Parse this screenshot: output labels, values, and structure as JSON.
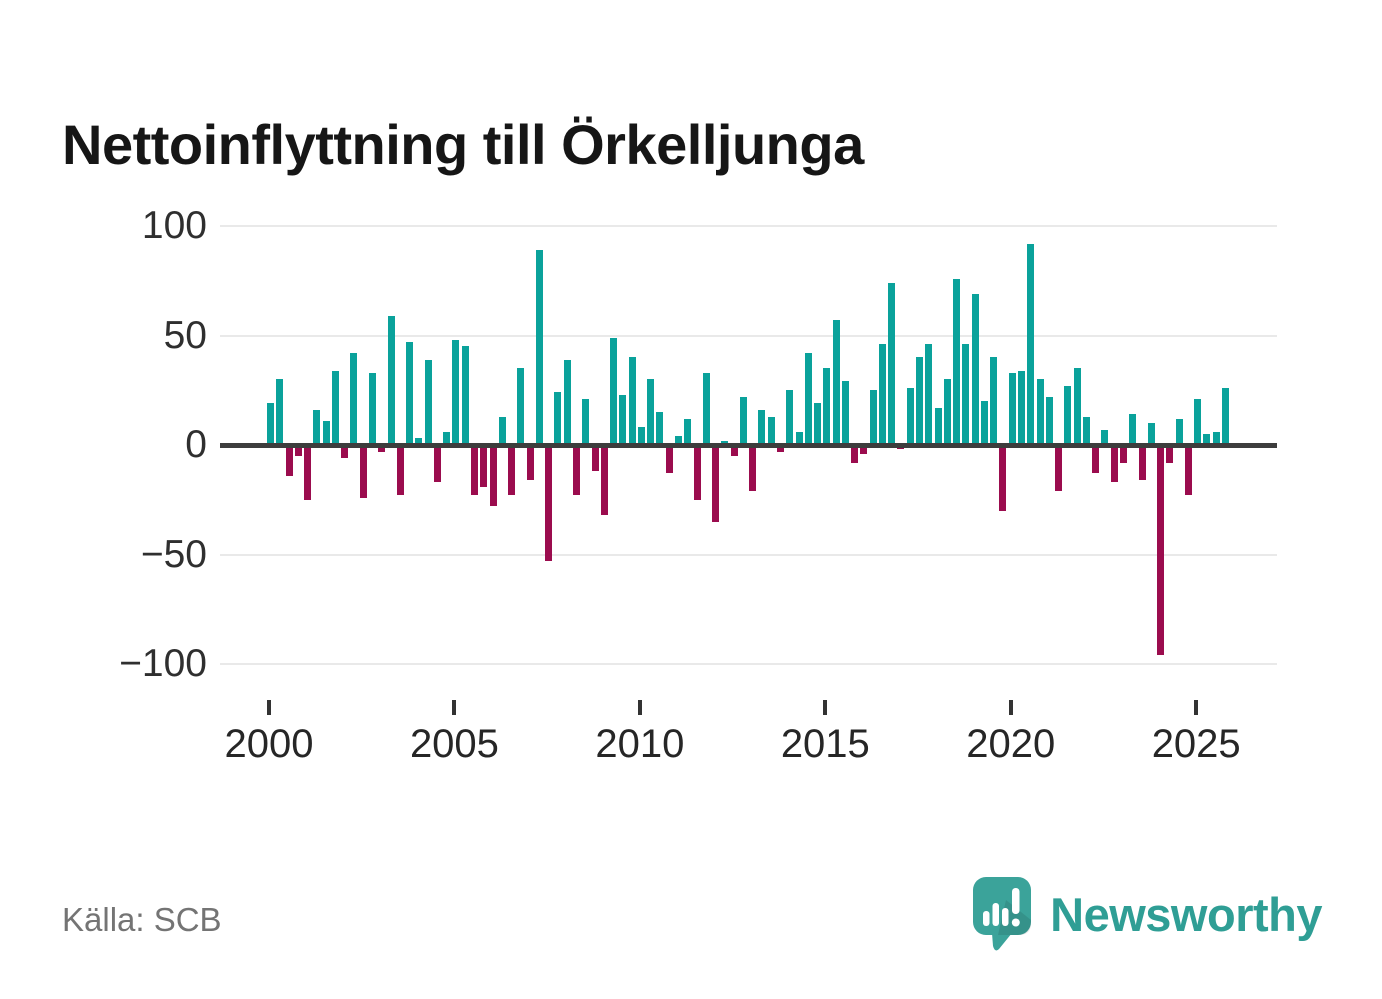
{
  "title": "Nettoinflyttning till Örkelljunga",
  "source": "Källa: SCB",
  "branding": {
    "name": "Newsworthy"
  },
  "colors": {
    "positive": "#0aa29b",
    "negative": "#9b0c4e",
    "zero_axis": "#3d3d3d",
    "grid": "#e9e9e9",
    "brand": "#3ba39a",
    "brand_text": "#2f9e95"
  },
  "y_axis": {
    "tick_labels": [
      "100",
      "50",
      "0",
      "−50",
      "−100"
    ],
    "tick_values": [
      100,
      50,
      0,
      -50,
      -100
    ]
  },
  "x_axis": {
    "tick_labels": [
      "2000",
      "2005",
      "2010",
      "2015",
      "2020",
      "2025"
    ],
    "tick_years": [
      2000,
      2005,
      2010,
      2015,
      2020,
      2025
    ]
  },
  "chart_data": {
    "type": "bar",
    "title": "Nettoinflyttning till Örkelljunga",
    "xlabel": "",
    "ylabel": "",
    "ylim": [
      -100,
      100
    ],
    "grid": "horizontal, every 50",
    "legend": "none",
    "positive_color": "#0aa29b",
    "negative_color": "#9b0c4e",
    "x": [
      "2000-Q1",
      "2000-Q2",
      "2000-Q3",
      "2000-Q4",
      "2001-Q1",
      "2001-Q2",
      "2001-Q3",
      "2001-Q4",
      "2002-Q1",
      "2002-Q2",
      "2002-Q3",
      "2002-Q4",
      "2003-Q1",
      "2003-Q2",
      "2003-Q3",
      "2003-Q4",
      "2004-Q1",
      "2004-Q2",
      "2004-Q3",
      "2004-Q4",
      "2005-Q1",
      "2005-Q2",
      "2005-Q3",
      "2005-Q4",
      "2006-Q1",
      "2006-Q2",
      "2006-Q3",
      "2006-Q4",
      "2007-Q1",
      "2007-Q2",
      "2007-Q3",
      "2007-Q4",
      "2008-Q1",
      "2008-Q2",
      "2008-Q3",
      "2008-Q4",
      "2009-Q1",
      "2009-Q2",
      "2009-Q3",
      "2009-Q4",
      "2010-Q1",
      "2010-Q2",
      "2010-Q3",
      "2010-Q4",
      "2011-Q1",
      "2011-Q2",
      "2011-Q3",
      "2011-Q4",
      "2012-Q1",
      "2012-Q2",
      "2012-Q3",
      "2012-Q4",
      "2013-Q1",
      "2013-Q2",
      "2013-Q3",
      "2013-Q4",
      "2014-Q1",
      "2014-Q2",
      "2014-Q3",
      "2014-Q4",
      "2015-Q1",
      "2015-Q2",
      "2015-Q3",
      "2015-Q4",
      "2016-Q1",
      "2016-Q2",
      "2016-Q3",
      "2016-Q4",
      "2017-Q1",
      "2017-Q2",
      "2017-Q3",
      "2017-Q4",
      "2018-Q1",
      "2018-Q2",
      "2018-Q3",
      "2018-Q4",
      "2019-Q1",
      "2019-Q2",
      "2019-Q3",
      "2019-Q4",
      "2020-Q1",
      "2020-Q2",
      "2020-Q3",
      "2020-Q4",
      "2021-Q1",
      "2021-Q2",
      "2021-Q3",
      "2021-Q4",
      "2022-Q1",
      "2022-Q2",
      "2022-Q3",
      "2022-Q4",
      "2023-Q1",
      "2023-Q2",
      "2023-Q3",
      "2023-Q4",
      "2024-Q1",
      "2024-Q2",
      "2024-Q3",
      "2024-Q4",
      "2025-Q1",
      "2025-Q2",
      "2025-Q3",
      "2025-Q4"
    ],
    "values": [
      19,
      30,
      -14,
      -5,
      -25,
      16,
      11,
      34,
      -6,
      42,
      -24,
      33,
      -3,
      59,
      -23,
      47,
      3,
      39,
      -17,
      6,
      48,
      45,
      -23,
      -19,
      -28,
      13,
      -23,
      35,
      -16,
      89,
      -53,
      24,
      39,
      -23,
      21,
      -12,
      -32,
      49,
      23,
      40,
      8,
      30,
      15,
      -13,
      4,
      12,
      -25,
      33,
      -35,
      2,
      -5,
      22,
      -21,
      16,
      13,
      -3,
      25,
      6,
      42,
      19,
      35,
      57,
      29,
      -8,
      -4,
      25,
      46,
      74,
      -2,
      26,
      40,
      46,
      17,
      30,
      76,
      46,
      69,
      20,
      40,
      -30,
      33,
      34,
      92,
      30,
      22,
      -21,
      27,
      35,
      13,
      -13,
      7,
      -17,
      -8,
      14,
      -16,
      10,
      -96,
      -8,
      12,
      -23,
      21,
      5,
      6,
      26
    ]
  }
}
